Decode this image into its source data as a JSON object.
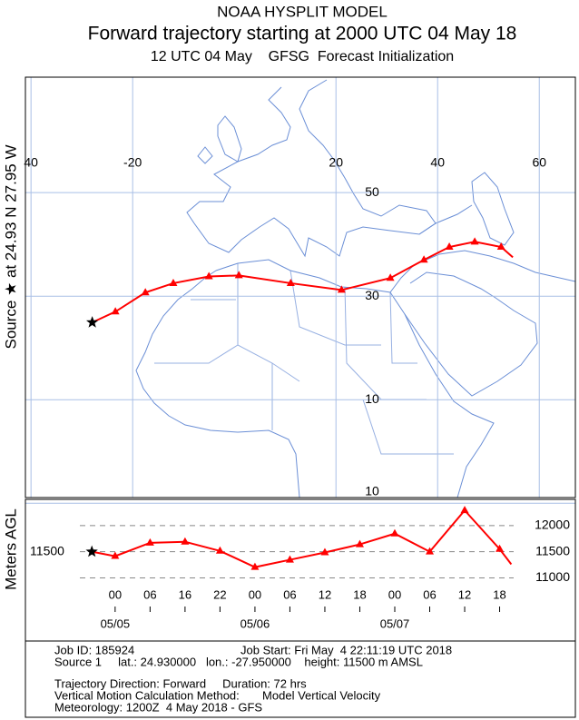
{
  "chart_data": {
    "type": "trajectory",
    "title": "NOAA HYSPLIT MODEL",
    "subtitle": "Forward trajectory starting at 2000 UTC 04 May 18",
    "subtitle2": "12 UTC 04 May    GFSG  Forecast Initialization",
    "source_label": "Source ★ at 24.93 N 27.95 W",
    "y_label": "Meters AGL",
    "color": "#ff0000",
    "hours": [
      0,
      4,
      10,
      16,
      22,
      28,
      34,
      40,
      46,
      52,
      58,
      64,
      70,
      72
    ],
    "lat": [
      24.93,
      27.0,
      30.7,
      32.5,
      33.8,
      34.0,
      32.5,
      31.2,
      33.5,
      37.0,
      39.5,
      40.5,
      39.5,
      37.5
    ],
    "lon": [
      -27.95,
      -23.4,
      -17.5,
      -12.0,
      -5.0,
      0.9,
      11.1,
      21.1,
      30.7,
      37.3,
      42.3,
      47.3,
      52.5,
      54.8
    ],
    "height": [
      11500,
      11415,
      11670,
      11690,
      11515,
      11205,
      11345,
      11485,
      11640,
      11845,
      11500,
      12290,
      11550,
      11260
    ],
    "xlim": [
      -11.4,
      83
    ],
    "xticks": [
      {
        "value": 4,
        "label": "00"
      },
      {
        "value": 10,
        "label": "06"
      },
      16,
      22,
      {
        "value": 28,
        "label": "00"
      },
      {
        "value": 34,
        "label": "06"
      },
      {
        "value": 40,
        "label": "12"
      },
      {
        "value": 46,
        "label": "18"
      },
      {
        "value": 52,
        "label": "00"
      },
      {
        "value": 58,
        "label": "06"
      },
      {
        "value": 64,
        "label": "12"
      },
      {
        "value": 70,
        "label": "18"
      }
    ],
    "date_ticks": [
      {
        "value": 28,
        "label": "05/06"
      },
      {
        "value": 4,
        "label": "05/05"
      },
      {
        "value": 52,
        "label": "05/07"
      }
    ],
    "ylim": [
      10800,
      12500
    ],
    "yticks": [
      11000,
      11500,
      12000
    ],
    "lonlim": [
      -41.1,
      67.1
    ],
    "latlim": [
      -8.9,
      72.3
    ],
    "lonticks": [
      {
        "value": -40,
        "label": "40"
      },
      -20,
      20,
      40,
      60
    ],
    "latticks": [
      50,
      30,
      10,
      {
        "value": -10,
        "label": "10"
      }
    ]
  },
  "info": {
    "job_id": "Job ID: 185924",
    "job_start": "Job Start: Fri May  4 22:11:19 UTC 2018",
    "source": "Source 1     lat.: 24.930000   lon.: -27.950000    height: 11500 m AMSL",
    "direction": "Trajectory Direction: Forward     Duration: 72 hrs",
    "method": "Vertical Motion Calculation Method:       Model Vertical Velocity",
    "meteorology": "Meteorology: 1200Z  4 May 2018 - GFS"
  }
}
